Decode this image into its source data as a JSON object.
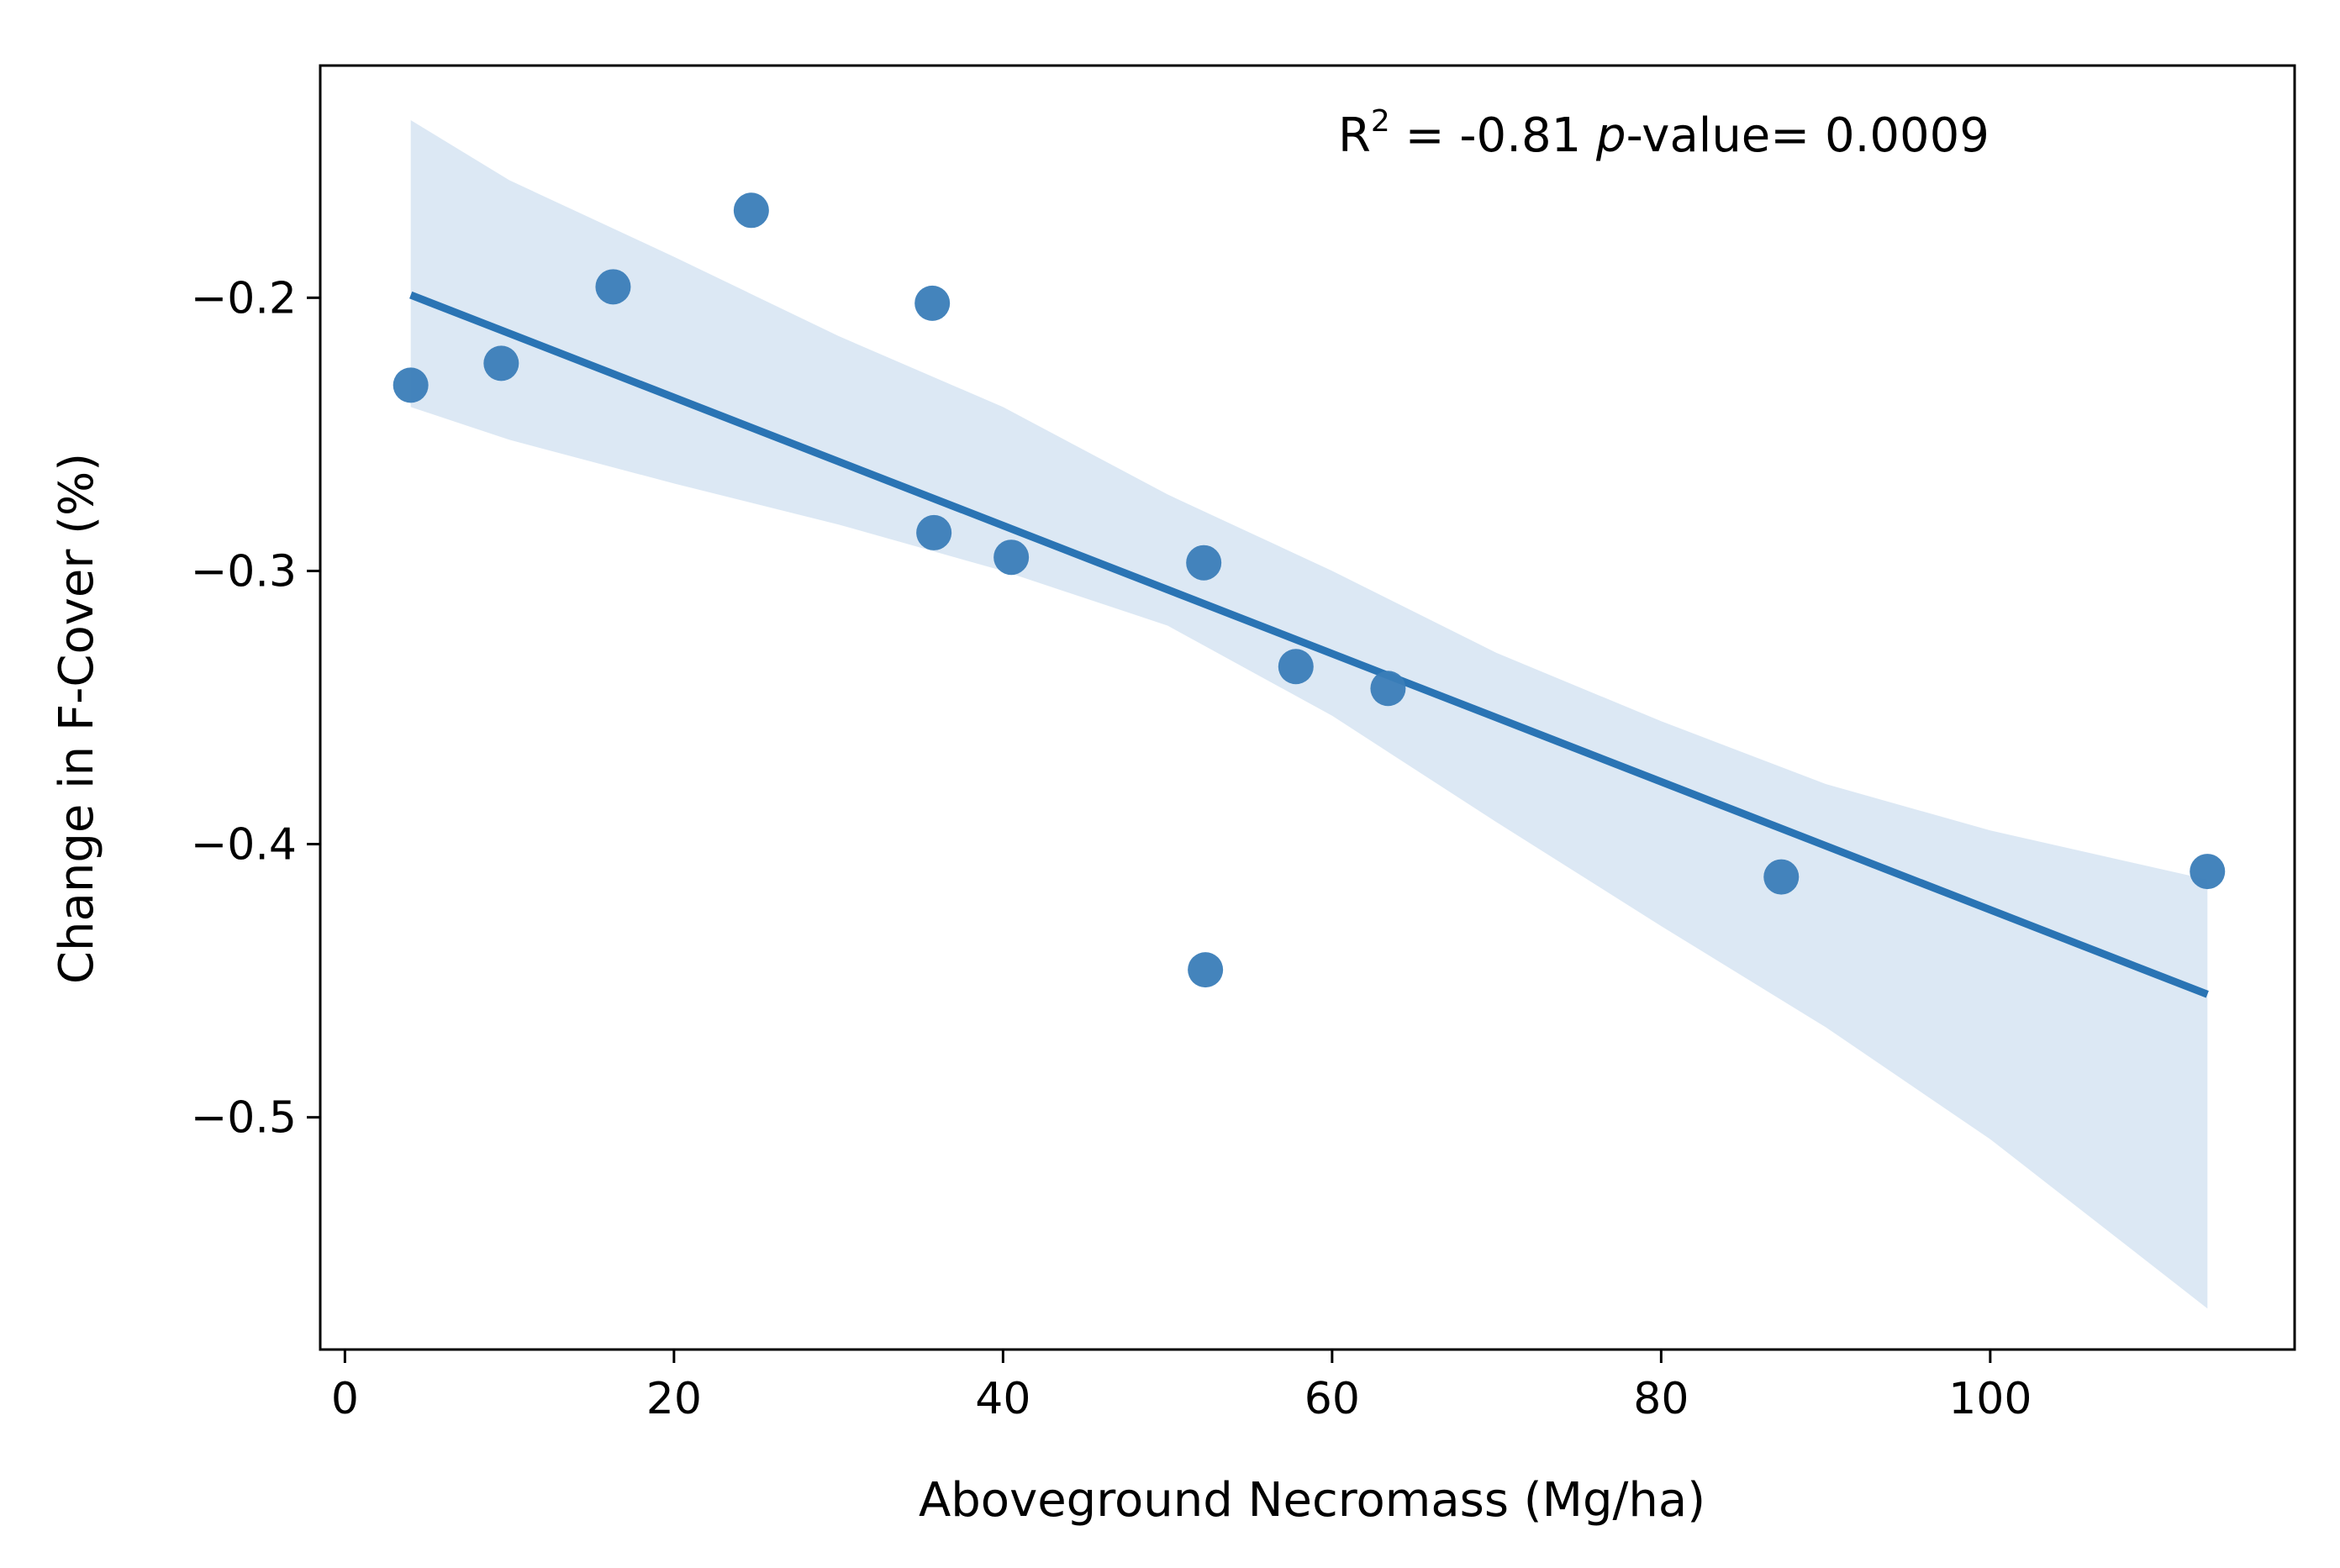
{
  "chart_data": {
    "type": "scatter",
    "title": "",
    "xlabel": "Aboveground Necromass (Mg/ha)",
    "ylabel": "Change in F-Cover (%)",
    "xlim": [
      -1.5,
      118.5
    ],
    "ylim": [
      -0.585,
      -0.115
    ],
    "xticks": [
      0,
      20,
      40,
      60,
      80,
      100
    ],
    "yticks": [
      -0.2,
      -0.3,
      -0.4,
      -0.5
    ],
    "ytick_labels": [
      "−0.2",
      "−0.3",
      "−0.4",
      "−0.5"
    ],
    "grid": false,
    "points": [
      {
        "x": 4.0,
        "y": -0.232
      },
      {
        "x": 9.5,
        "y": -0.224
      },
      {
        "x": 16.3,
        "y": -0.196
      },
      {
        "x": 24.7,
        "y": -0.168
      },
      {
        "x": 35.7,
        "y": -0.202
      },
      {
        "x": 35.8,
        "y": -0.286
      },
      {
        "x": 40.5,
        "y": -0.295
      },
      {
        "x": 52.2,
        "y": -0.297
      },
      {
        "x": 52.3,
        "y": -0.446
      },
      {
        "x": 57.8,
        "y": -0.335
      },
      {
        "x": 63.4,
        "y": -0.343
      },
      {
        "x": 87.3,
        "y": -0.412
      },
      {
        "x": 113.2,
        "y": -0.41
      }
    ],
    "regression": {
      "x": [
        4.0,
        113.2
      ],
      "y": [
        -0.199,
        -0.455
      ]
    },
    "confidence_band": {
      "x": [
        4.0,
        10,
        20,
        30,
        40,
        50,
        60,
        70,
        80,
        90,
        100,
        113.2
      ],
      "upper": [
        -0.135,
        -0.157,
        -0.185,
        -0.214,
        -0.24,
        -0.272,
        -0.3,
        -0.33,
        -0.355,
        -0.378,
        -0.395,
        -0.413
      ],
      "lower": [
        -0.24,
        -0.252,
        -0.268,
        -0.283,
        -0.3,
        -0.32,
        -0.353,
        -0.392,
        -0.43,
        -0.467,
        -0.508,
        -0.57
      ]
    },
    "annotation": {
      "r_label": "R",
      "r_sup": "2",
      "r_value": " = -0.81 ",
      "p_italic": "p",
      "p_rest": "-value= 0.0009"
    },
    "colors": {
      "points": "#3a7db8",
      "line": "#2a74b4",
      "band": "#dce8f4",
      "axes": "#000000"
    }
  }
}
